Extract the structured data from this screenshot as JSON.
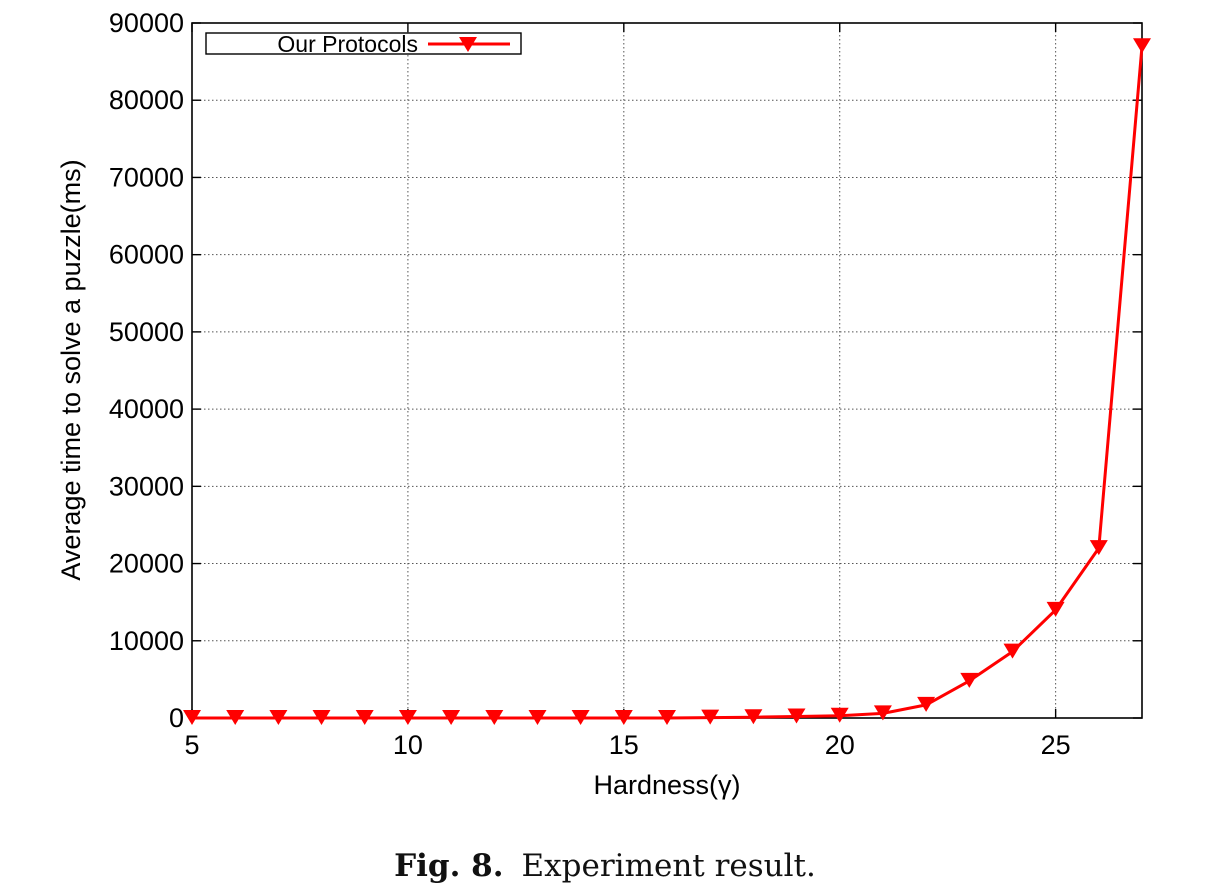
{
  "chart_data": {
    "type": "line",
    "xlabel": "Hardness(γ)",
    "ylabel": "Average time to solve a puzzle(ms)",
    "xlim": [
      5,
      27
    ],
    "ylim": [
      0,
      90000
    ],
    "xticks": [
      5,
      10,
      15,
      20,
      25
    ],
    "yticks": [
      0,
      10000,
      20000,
      30000,
      40000,
      50000,
      60000,
      70000,
      80000,
      90000
    ],
    "grid": true,
    "legend_position": "top-left",
    "series": [
      {
        "name": "Our Protocols",
        "color": "#ff0000",
        "marker": "down-triangle",
        "x": [
          5,
          6,
          7,
          8,
          9,
          10,
          11,
          12,
          13,
          14,
          15,
          16,
          17,
          18,
          19,
          20,
          21,
          22,
          23,
          24,
          25,
          26,
          27
        ],
        "y": [
          0,
          0,
          0,
          0,
          0,
          0,
          0,
          0,
          0,
          0,
          0,
          0,
          50,
          100,
          200,
          300,
          600,
          1700,
          4800,
          8600,
          14000,
          22000,
          87000
        ]
      }
    ]
  },
  "caption": {
    "label": "Fig. 8.",
    "text": "Experiment result."
  }
}
